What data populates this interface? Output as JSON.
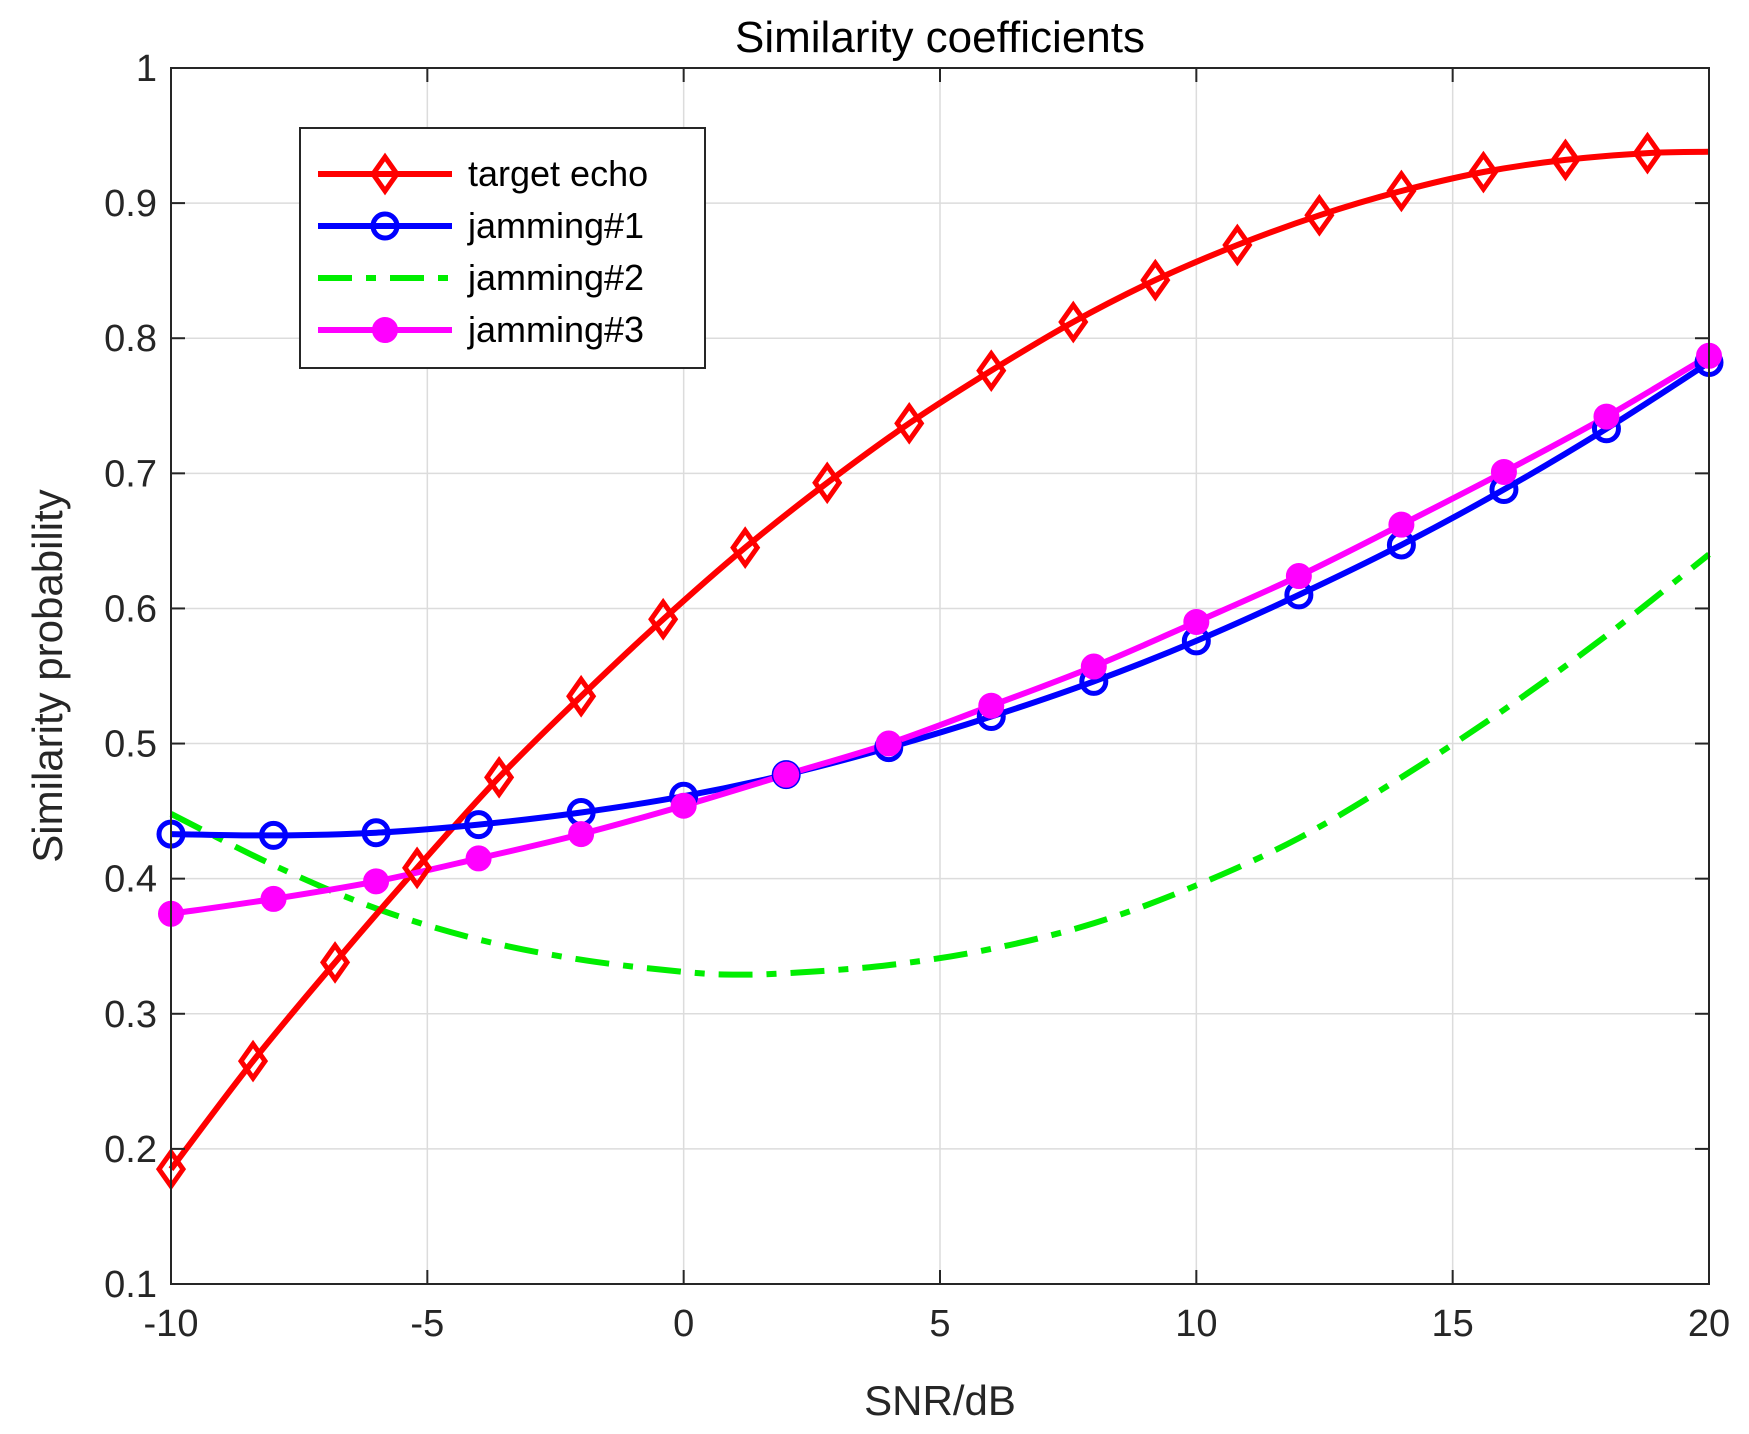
{
  "chart_data": {
    "type": "line",
    "title": "Similarity coefficients",
    "xlabel": "SNR/dB",
    "ylabel": "Similarity probability",
    "xlim": [
      -10,
      20
    ],
    "ylim": [
      0.1,
      1
    ],
    "xticks": [
      -10,
      -5,
      0,
      5,
      10,
      15,
      20
    ],
    "yticks": [
      0.1,
      0.2,
      0.3,
      0.4,
      0.5,
      0.6,
      0.7,
      0.8,
      0.9,
      1
    ],
    "xtick_labels": [
      "-10",
      "-5",
      "0",
      "5",
      "10",
      "15",
      "20"
    ],
    "ytick_labels": [
      "0.1",
      "0.2",
      "0.3",
      "0.4",
      "0.5",
      "0.6",
      "0.7",
      "0.8",
      "0.9",
      "1"
    ],
    "grid": true,
    "legend_position": "top-left",
    "series": [
      {
        "name": "target echo",
        "color": "#ff0000",
        "line_style": "solid",
        "marker": "diamond",
        "x": [
          -10,
          -8.4,
          -6.8,
          -5.2,
          -3.6,
          -2,
          -0.4,
          1.2,
          2.8,
          4.4,
          6,
          7.6,
          9.2,
          10.8,
          12.4,
          14,
          15.6,
          17.2,
          18.8,
          20
        ],
        "y": [
          0.185,
          0.265,
          0.338,
          0.408,
          0.475,
          0.535,
          0.592,
          0.645,
          0.693,
          0.737,
          0.776,
          0.812,
          0.843,
          0.869,
          0.891,
          0.909,
          0.923,
          0.932,
          0.937,
          0.938
        ],
        "marker_x": [
          -10,
          -8.4,
          -6.8,
          -5.2,
          -3.6,
          -2,
          -0.4,
          1.2,
          2.8,
          4.4,
          6,
          7.6,
          9.2,
          10.8,
          12.4,
          14,
          15.6,
          17.2,
          18.8
        ]
      },
      {
        "name": "jamming#1",
        "color": "#0000ff",
        "line_style": "solid",
        "marker": "circle",
        "x": [
          -10,
          -8,
          -6,
          -4,
          -2,
          0,
          2,
          4,
          6,
          8,
          10,
          12,
          14,
          16,
          18,
          20
        ],
        "y": [
          0.433,
          0.432,
          0.434,
          0.44,
          0.449,
          0.461,
          0.477,
          0.497,
          0.52,
          0.546,
          0.576,
          0.61,
          0.647,
          0.688,
          0.733,
          0.782
        ],
        "marker_x": [
          -10,
          -8,
          -6,
          -4,
          -2,
          0,
          2,
          4,
          6,
          8,
          10,
          12,
          14,
          16,
          18,
          20
        ]
      },
      {
        "name": "jamming#2",
        "color": "#00ee00",
        "line_style": "dashdot",
        "marker": "none",
        "x": [
          -10,
          -8,
          -6,
          -4,
          -2,
          0,
          1,
          2,
          4,
          6,
          8,
          10,
          12,
          14,
          16,
          18,
          20
        ],
        "y": [
          0.448,
          0.41,
          0.378,
          0.355,
          0.34,
          0.331,
          0.329,
          0.33,
          0.336,
          0.348,
          0.367,
          0.395,
          0.43,
          0.475,
          0.525,
          0.58,
          0.64
        ],
        "marker_x": []
      },
      {
        "name": "jamming#3",
        "color": "#ff00ff",
        "line_style": "solid",
        "marker": "filled-circle",
        "x": [
          -10,
          -8,
          -6,
          -4,
          -2,
          0,
          2,
          4,
          6,
          8,
          10,
          12,
          14,
          16,
          18,
          20
        ],
        "y": [
          0.374,
          0.385,
          0.398,
          0.415,
          0.433,
          0.454,
          0.477,
          0.5,
          0.528,
          0.557,
          0.59,
          0.624,
          0.662,
          0.701,
          0.742,
          0.787
        ],
        "marker_x": [
          -10,
          -8,
          -6,
          -4,
          -2,
          0,
          2,
          4,
          6,
          8,
          10,
          12,
          14,
          16,
          18,
          20
        ]
      }
    ]
  }
}
